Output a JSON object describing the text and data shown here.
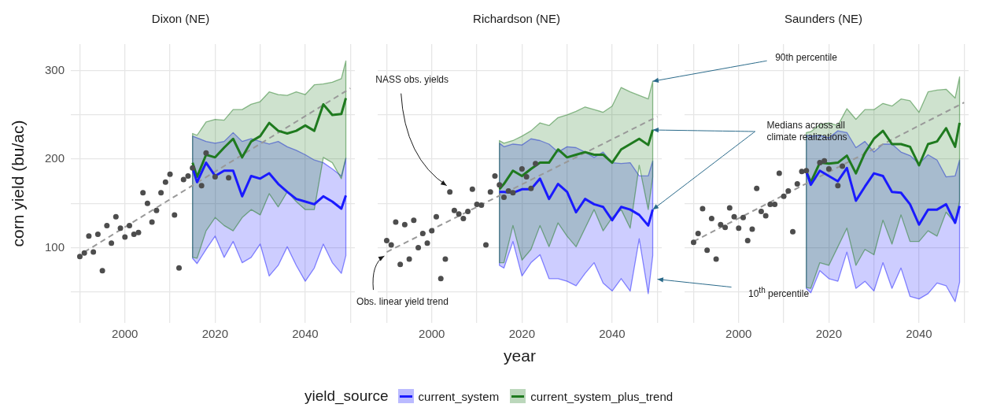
{
  "chart_data": [
    {
      "type": "line",
      "title": "Dixon (NE)",
      "ylabel": "corn yield (bu/ac)",
      "legend": "bottom",
      "legend_title": "yield_source",
      "grid": true,
      "xlim": [
        1988,
        2051
      ],
      "xticks": [
        {
          "value": 1990,
          "label": null
        },
        2000,
        {
          "value": 2010,
          "label": null
        },
        2020,
        {
          "value": 2030,
          "label": null
        },
        2040,
        {
          "value": 2050,
          "label": null
        }
      ],
      "ylim": [
        15,
        330
      ],
      "yticks": [
        {
          "value": 50,
          "label": null
        },
        100,
        {
          "value": 150,
          "label": null
        },
        200,
        {
          "value": 250,
          "label": null
        },
        300
      ],
      "series": [
        {
          "type": "scatter",
          "color": "#4d4d4d",
          "x": [
            1990,
            1991,
            1992,
            1993,
            1994,
            1995,
            1996,
            1997,
            1998,
            1999,
            2000,
            2001,
            2002,
            2003,
            2004,
            2005,
            2006,
            2007,
            2008,
            2009,
            2010,
            2011,
            2012,
            2013,
            2014,
            2015,
            2017,
            2018,
            2020,
            2023
          ],
          "values": [
            90,
            94,
            113,
            95,
            115,
            74,
            125,
            105,
            135,
            122,
            112,
            125,
            115,
            117,
            162,
            150,
            129,
            142,
            162,
            174,
            183,
            137,
            77,
            177,
            181,
            190,
            170,
            207,
            180,
            179
          ]
        },
        {
          "type": "line",
          "line_style": "dashed",
          "color": "#999999",
          "x": [
            1991,
            2050
          ],
          "values": [
            95,
            280
          ]
        },
        {
          "name": "current_system",
          "color": "#1a1aff",
          "x": [
            2015,
            2016,
            2018,
            2020,
            2022,
            2024,
            2026,
            2028,
            2030,
            2032,
            2034,
            2036,
            2038,
            2040,
            2042,
            2044,
            2046,
            2048,
            2049
          ],
          "values": [
            190,
            174,
            196,
            181,
            187,
            187,
            158,
            181,
            178,
            184,
            172,
            163,
            155,
            152,
            149,
            158,
            152,
            144,
            159
          ],
          "lower": [
            88,
            82,
            98,
            113,
            89,
            107,
            83,
            89,
            104,
            68,
            80,
            101,
            80,
            62,
            77,
            104,
            83,
            71,
            91
          ],
          "upper": [
            226,
            224,
            220,
            218,
            220,
            230,
            220,
            223,
            220,
            217,
            220,
            214,
            210,
            205,
            199,
            196,
            189,
            181,
            201
          ]
        },
        {
          "name": "current_system_plus_trend",
          "color": "#1f7a1f",
          "x": [
            2015,
            2016,
            2018,
            2020,
            2022,
            2024,
            2026,
            2028,
            2030,
            2032,
            2034,
            2036,
            2038,
            2040,
            2042,
            2044,
            2046,
            2048,
            2049
          ],
          "values": [
            196,
            180,
            205,
            202,
            213,
            223,
            202,
            220,
            226,
            241,
            232,
            229,
            232,
            238,
            232,
            262,
            250,
            251,
            269
          ],
          "lower": [
            89,
            88,
            119,
            134,
            125,
            119,
            134,
            143,
            137,
            161,
            146,
            163,
            152,
            143,
            143,
            202,
            196,
            178,
            201
          ],
          "upper": [
            229,
            227,
            242,
            245,
            244,
            256,
            256,
            262,
            265,
            276,
            273,
            272,
            276,
            273,
            284,
            285,
            287,
            291,
            311
          ]
        }
      ]
    },
    {
      "type": "line",
      "title": "Richardson (NE)",
      "xlabel": "year",
      "grid": true,
      "tick_labels": "x",
      "xlim": [
        1988,
        2051
      ],
      "xticks": [
        {
          "value": 1990,
          "label": null
        },
        2000,
        {
          "value": 2010,
          "label": null
        },
        2020,
        {
          "value": 2030,
          "label": null
        },
        2040,
        {
          "value": 2050,
          "label": null
        }
      ],
      "ylim": [
        15,
        330
      ],
      "yticks": [
        {
          "value": 50,
          "label": null
        },
        100,
        {
          "value": 150,
          "label": null
        },
        200,
        {
          "value": 250,
          "label": null
        },
        300
      ],
      "annotations": [
        {
          "text": "NASS obs. yields",
          "x": 2004,
          "y": 163
        },
        {
          "text": "Obs. linear yield trend",
          "x": 1990,
          "y": 95
        },
        {
          "text": "90th percentile",
          "x": 2049,
          "y": 288
        },
        {
          "text": "Medians across all climate realizations",
          "x": 2049,
          "y": 233
        },
        "10$^{th}$ percentile"
      ],
      "series": [
        {
          "type": "scatter",
          "color": "#4d4d4d",
          "x": [
            1990,
            1991,
            1992,
            1993,
            1994,
            1995,
            1996,
            1997,
            1998,
            1999,
            2000,
            2001,
            2002,
            2003,
            2004,
            2005,
            2006,
            2007,
            2008,
            2009,
            2010,
            2011,
            2012,
            2013,
            2014,
            2015,
            2016,
            2017,
            2018,
            2020,
            2021,
            2022,
            2023
          ],
          "values": [
            108,
            103,
            129,
            81,
            126,
            87,
            131,
            100,
            116,
            105,
            119,
            135,
            65,
            87,
            163,
            142,
            138,
            133,
            141,
            166,
            149,
            148,
            103,
            163,
            181,
            171,
            157,
            164,
            162,
            189,
            180,
            167,
            195
          ]
        },
        {
          "type": "line",
          "line_style": "dashed",
          "color": "#999999",
          "x": [
            1990,
            2050
          ],
          "values": [
            95,
            248
          ]
        },
        {
          "name": "current_system",
          "color": "#1a1aff",
          "x": [
            2015,
            2016,
            2018,
            2020,
            2022,
            2024,
            2026,
            2028,
            2030,
            2032,
            2034,
            2036,
            2038,
            2040,
            2042,
            2044,
            2046,
            2048,
            2049
          ],
          "values": [
            163,
            163,
            162,
            166,
            166,
            178,
            155,
            172,
            163,
            140,
            155,
            149,
            146,
            131,
            146,
            143,
            137,
            125,
            143
          ],
          "lower": [
            80,
            77,
            107,
            68,
            83,
            92,
            65,
            65,
            62,
            57,
            71,
            83,
            60,
            51,
            65,
            51,
            110,
            48,
            91
          ],
          "upper": [
            218,
            214,
            217,
            216,
            223,
            221,
            217,
            208,
            214,
            213,
            208,
            202,
            208,
            196,
            195,
            196,
            181,
            181,
            198
          ]
        },
        {
          "name": "current_system_plus_trend",
          "color": "#1f7a1f",
          "x": [
            2015,
            2016,
            2018,
            2020,
            2022,
            2024,
            2026,
            2028,
            2030,
            2032,
            2034,
            2036,
            2038,
            2040,
            2042,
            2044,
            2046,
            2048,
            2049
          ],
          "values": [
            166,
            172,
            187,
            181,
            189,
            196,
            196,
            211,
            202,
            205,
            208,
            205,
            205,
            196,
            211,
            217,
            223,
            216,
            233
          ],
          "lower": [
            83,
            83,
            125,
            86,
            98,
            125,
            101,
            128,
            113,
            101,
            122,
            143,
            119,
            134,
            143,
            122,
            193,
            143,
            180
          ],
          "upper": [
            221,
            218,
            221,
            226,
            232,
            241,
            238,
            247,
            250,
            254,
            259,
            256,
            253,
            260,
            281,
            276,
            272,
            268,
            288
          ]
        }
      ]
    },
    {
      "type": "line",
      "title": "Saunders (NE)",
      "grid": true,
      "tick_labels": "x",
      "xlim": [
        1988,
        2051
      ],
      "xticks": [
        {
          "value": 1990,
          "label": null
        },
        2000,
        {
          "value": 2010,
          "label": null
        },
        2020,
        {
          "value": 2030,
          "label": null
        },
        2040,
        {
          "value": 2050,
          "label": null
        }
      ],
      "ylim": [
        15,
        330
      ],
      "yticks": [
        {
          "value": 50,
          "label": null
        },
        100,
        {
          "value": 150,
          "label": null
        },
        200,
        {
          "value": 250,
          "label": null
        },
        300
      ],
      "series": [
        {
          "type": "scatter",
          "color": "#4d4d4d",
          "x": [
            1990,
            1991,
            1992,
            1993,
            1994,
            1995,
            1996,
            1997,
            1998,
            1999,
            2000,
            2001,
            2002,
            2003,
            2004,
            2005,
            2006,
            2007,
            2008,
            2009,
            2010,
            2011,
            2012,
            2013,
            2014,
            2015,
            2018,
            2019,
            2020,
            2022,
            2023
          ],
          "values": [
            106,
            116,
            144,
            97,
            133,
            87,
            126,
            123,
            145,
            135,
            122,
            134,
            108,
            121,
            167,
            141,
            136,
            149,
            149,
            184,
            158,
            164,
            118,
            172,
            186,
            187,
            196,
            198,
            189,
            170,
            192
          ]
        },
        {
          "type": "line",
          "line_style": "dashed",
          "color": "#999999",
          "x": [
            1990,
            2050
          ],
          "values": [
            107,
            264
          ]
        },
        {
          "name": "current_system",
          "color": "#1a1aff",
          "x": [
            2015,
            2016,
            2018,
            2020,
            2022,
            2024,
            2026,
            2028,
            2030,
            2032,
            2034,
            2036,
            2038,
            2040,
            2042,
            2044,
            2046,
            2048,
            2049
          ],
          "values": [
            186,
            171,
            187,
            181,
            175,
            190,
            153,
            169,
            184,
            181,
            163,
            162,
            149,
            126,
            143,
            143,
            149,
            128,
            147
          ],
          "lower": [
            54,
            49,
            74,
            65,
            62,
            95,
            54,
            62,
            51,
            83,
            54,
            77,
            45,
            42,
            48,
            60,
            57,
            39,
            61
          ],
          "upper": [
            227,
            226,
            227,
            224,
            232,
            230,
            213,
            220,
            208,
            217,
            217,
            208,
            204,
            195,
            205,
            199,
            180,
            181,
            199
          ]
        },
        {
          "name": "current_system_plus_trend",
          "color": "#1f7a1f",
          "x": [
            2015,
            2016,
            2018,
            2020,
            2022,
            2024,
            2026,
            2028,
            2030,
            2032,
            2034,
            2036,
            2038,
            2040,
            2042,
            2044,
            2046,
            2048,
            2049
          ],
          "values": [
            186,
            174,
            196,
            195,
            196,
            204,
            184,
            207,
            223,
            232,
            217,
            217,
            214,
            193,
            217,
            220,
            235,
            214,
            241
          ],
          "lower": [
            55,
            54,
            83,
            80,
            101,
            122,
            80,
            98,
            92,
            131,
            104,
            137,
            107,
            107,
            119,
            113,
            140,
            128,
            153
          ],
          "upper": [
            230,
            231,
            239,
            241,
            238,
            257,
            245,
            256,
            256,
            263,
            260,
            268,
            266,
            253,
            276,
            278,
            279,
            269,
            293
          ]
        }
      ]
    }
  ]
}
